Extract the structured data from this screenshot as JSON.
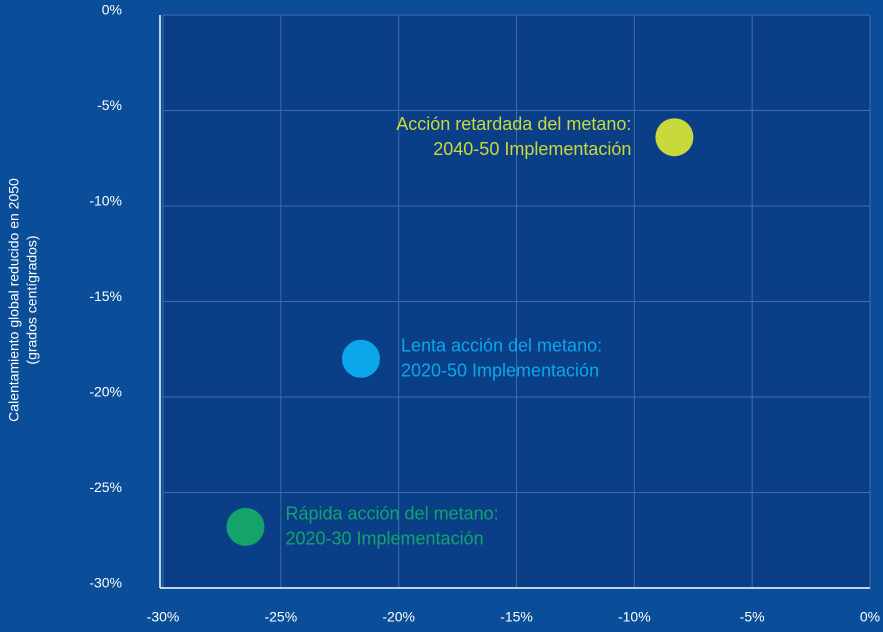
{
  "chart_data": {
    "type": "scatter",
    "y_label": [
      "Calentamiento global reducido en 2050",
      "(grados centígrados)"
    ],
    "series": [
      {
        "name": "Acción retardada del metano",
        "color": "#c9d83b",
        "x": [
          -8.3
        ],
        "values": [
          -6.4
        ]
      },
      {
        "name": "Lenta acción del metano",
        "color": "#0ba7ea",
        "x": [
          -21.6
        ],
        "values": [
          -18.0
        ]
      },
      {
        "name": "Rápida acción del metano",
        "color": "#13a36b",
        "x": [
          -26.5
        ],
        "values": [
          -26.8
        ]
      }
    ],
    "annotations": [
      [
        "Acción retardada del metano:",
        "2040-50 Implementación"
      ],
      [
        "Lenta acción del metano:",
        "2020-50 Implementación"
      ],
      [
        "Rápida acción del metano:",
        "2020-30 Implementación"
      ]
    ],
    "xlim": [
      -30,
      0
    ],
    "ylim": [
      -30,
      0
    ],
    "xticks": [
      {
        "value": -30,
        "label": "-30%"
      },
      {
        "value": -25,
        "label": "-25%"
      },
      {
        "value": -20,
        "label": "-20%"
      },
      {
        "value": -15,
        "label": "-15%"
      },
      {
        "value": -10,
        "label": "-10%"
      },
      {
        "value": -5,
        "label": "-5%"
      },
      {
        "value": 0,
        "label": "0%"
      }
    ],
    "yticks": [
      {
        "value": 0,
        "label": "0%"
      },
      {
        "value": -5,
        "label": "-5%"
      },
      {
        "value": -10,
        "label": "-10%"
      },
      {
        "value": -15,
        "label": "-15%"
      },
      {
        "value": -20,
        "label": "-20%"
      },
      {
        "value": -25,
        "label": "-25%"
      },
      {
        "value": -30,
        "label": "-30%"
      }
    ],
    "grid": true
  }
}
